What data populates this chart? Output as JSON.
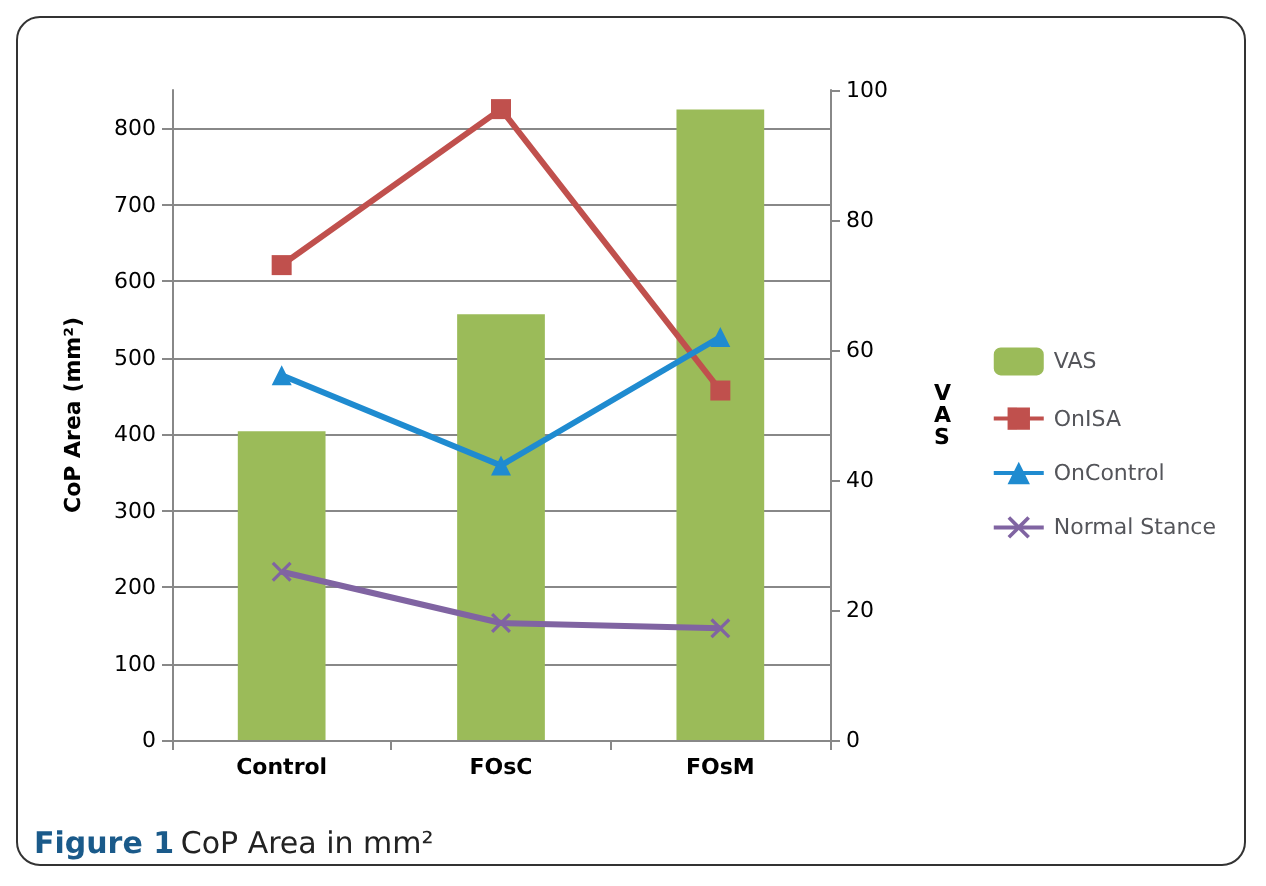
{
  "chart_data": {
    "type": "bar",
    "title": "Figure 1 CoP Area in mm²",
    "ylabel": "CoP Area (mm²)",
    "y2label": "VAS",
    "categories": [
      "Control",
      "FOsC",
      "FOsM"
    ],
    "series": [
      {
        "name": "VAS",
        "axis": "y2",
        "color": "#9bbb59",
        "values": [
          47.5,
          65.5,
          97
        ]
      },
      {
        "name": "OnISA",
        "type": "line",
        "color": "#c0504d",
        "marker": "square",
        "values": [
          621,
          825,
          457
        ]
      },
      {
        "name": "OnControl",
        "type": "line",
        "color": "#1f8bd0",
        "marker": "triangle",
        "values": [
          477,
          359,
          527
        ]
      },
      {
        "name": "Normal Stance",
        "type": "line",
        "color": "#8064a2",
        "marker": "cross",
        "values": [
          220,
          153,
          146
        ]
      }
    ],
    "ylim": [
      0,
      850
    ],
    "yticks": [
      0,
      100,
      200,
      300,
      400,
      500,
      600,
      700,
      800
    ],
    "y2lim": [
      0,
      100
    ],
    "y2ticks": [
      0,
      20,
      40,
      60,
      80,
      100
    ],
    "grid": "y",
    "legend": "right"
  }
}
